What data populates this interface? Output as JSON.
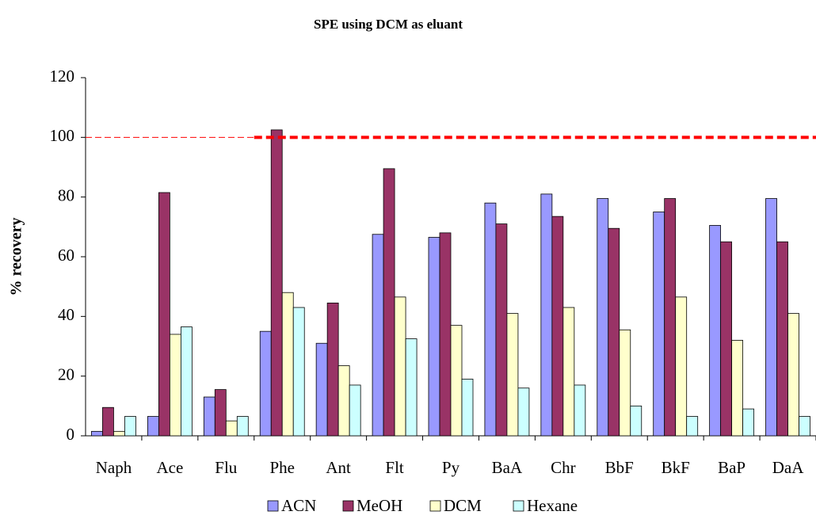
{
  "chart_data": {
    "type": "bar",
    "title": "SPE using DCM as eluant",
    "y_label": "% recovery",
    "categories": [
      "Naph",
      "Ace",
      "Flu",
      "Phe",
      "Ant",
      "Flt",
      "Py",
      "BaA",
      "Chr",
      "BbF",
      "BkF",
      "BaP",
      "DaA"
    ],
    "series": [
      {
        "name": "ACN",
        "color": "#9999ff",
        "values": [
          1.5,
          6.5,
          13,
          35,
          31,
          67.5,
          66.5,
          78,
          81,
          79.5,
          75,
          70.5,
          79.5
        ]
      },
      {
        "name": "MeOH",
        "color": "#993366",
        "values": [
          9.5,
          81.5,
          15.5,
          102.5,
          44.5,
          89.5,
          68,
          71,
          73.5,
          69.5,
          79.5,
          65,
          65
        ]
      },
      {
        "name": "DCM",
        "color": "#ffffcc",
        "values": [
          1.5,
          34,
          5,
          48,
          23.5,
          46.5,
          37,
          41,
          43,
          35.5,
          46.5,
          32,
          41
        ]
      },
      {
        "name": "Hexane",
        "color": "#ccffff",
        "values": [
          6.5,
          36.5,
          6.5,
          43,
          17,
          32.5,
          19,
          16,
          17,
          10,
          6.5,
          9,
          6.5
        ]
      }
    ],
    "ylim": [
      0,
      120
    ],
    "yticks": [
      0,
      20,
      40,
      60,
      80,
      100,
      120
    ],
    "reference_line": {
      "value": 100,
      "color": "#ff0000"
    }
  }
}
